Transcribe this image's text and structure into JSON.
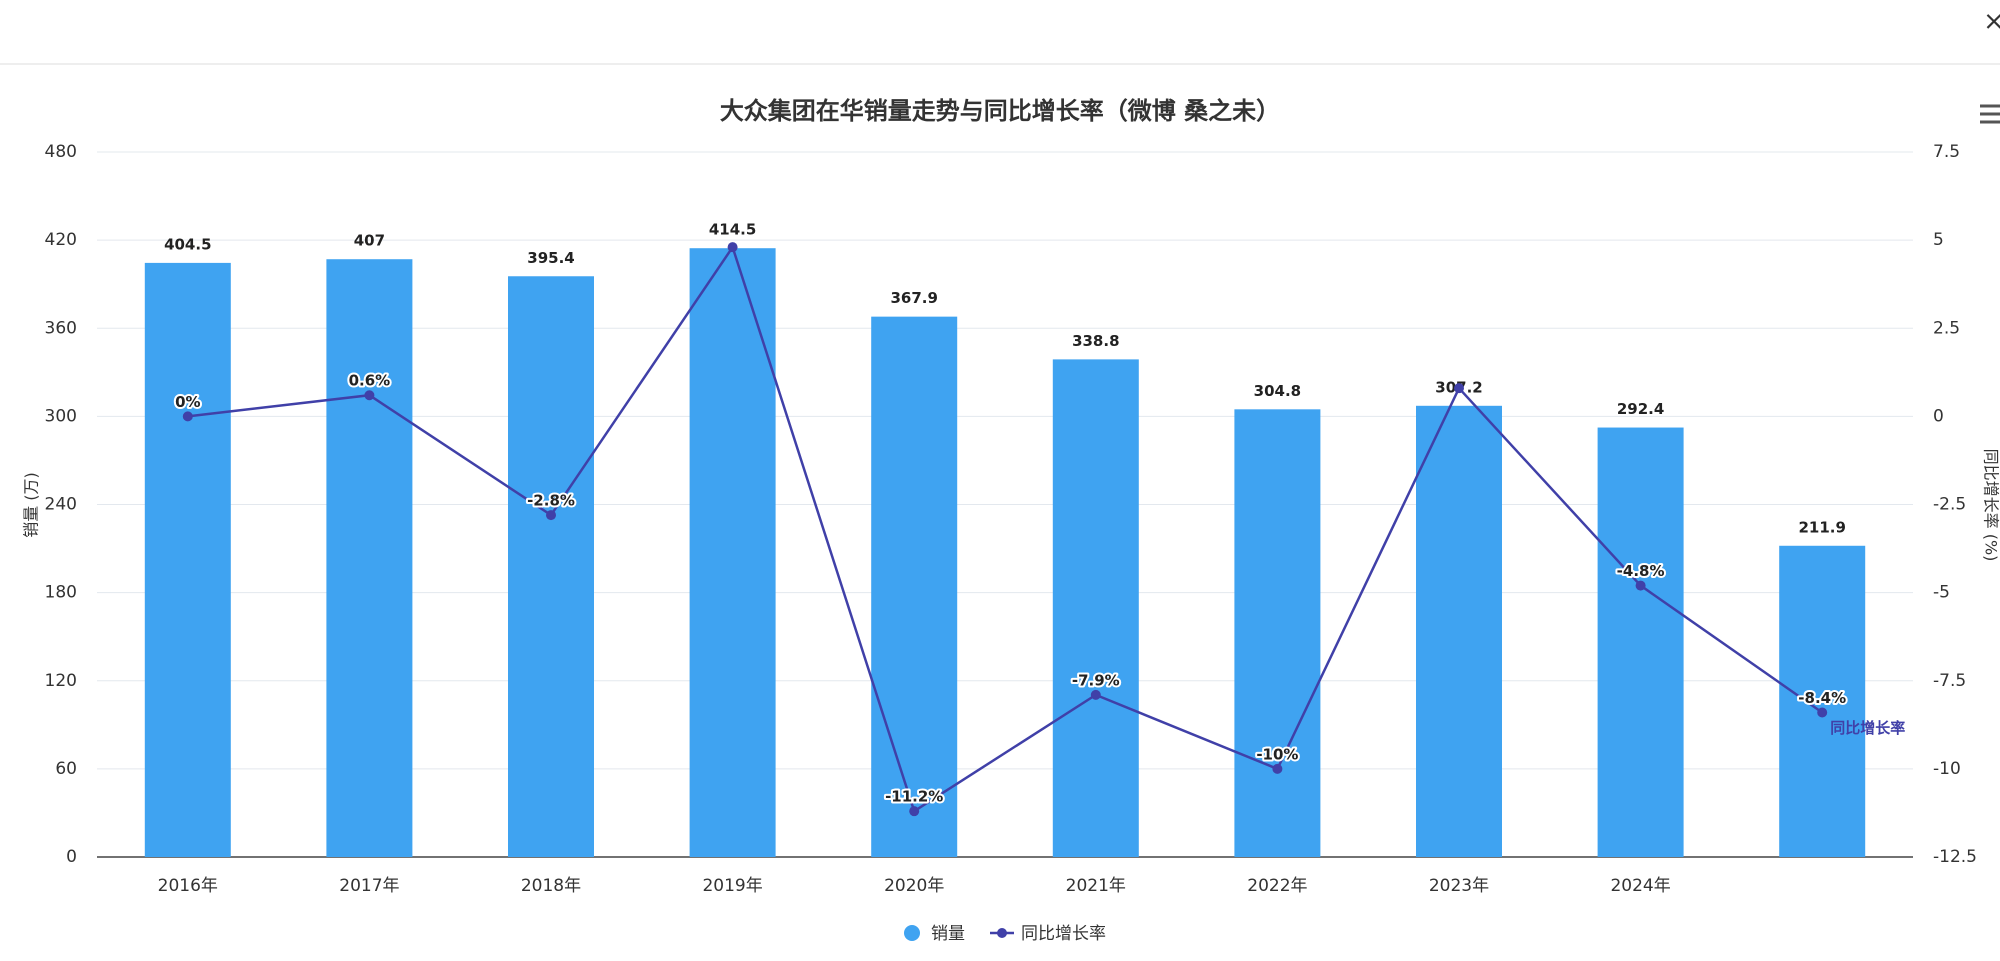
{
  "chart_data": {
    "type": "bar-line",
    "title": "大众集团在华销量走势与同比增长率（微博 桑之未）",
    "categories": [
      "2016年",
      "2017年",
      "2018年",
      "2019年",
      "2020年",
      "2021年",
      "2022年",
      "2023年",
      "2024年",
      null
    ],
    "series": [
      {
        "name": "销量",
        "type": "bar",
        "color": "#3fa3f1",
        "axis": "y",
        "values": [
          404.5,
          407,
          395.4,
          414.5,
          367.9,
          338.8,
          304.8,
          307.2,
          292.4,
          211.9
        ]
      },
      {
        "name": "同比增长率",
        "type": "line",
        "color": "#4040a8",
        "axis": "y2",
        "values": [
          0,
          0.6,
          -2.8,
          4.8,
          -11.2,
          -7.9,
          -10,
          0.8,
          -4.8,
          -8.4
        ],
        "value_labels": [
          "0%",
          "0.6%",
          "-2.8%",
          null,
          "-11.2%",
          "-7.9%",
          "-10%",
          null,
          "-4.8%",
          "-8.4%"
        ]
      }
    ],
    "ylabel": "销量 (万)",
    "y2label": "同比增长率 (%)",
    "ylim": [
      0,
      480
    ],
    "yticks": [
      0,
      60,
      120,
      180,
      240,
      300,
      360,
      420,
      480
    ],
    "y2lim": [
      -12.5,
      7.5
    ],
    "y2ticks": [
      -12.5,
      -10,
      -7.5,
      -5,
      -2.5,
      0,
      2.5,
      5,
      7.5
    ],
    "grid": true,
    "legend": "bottom"
  }
}
